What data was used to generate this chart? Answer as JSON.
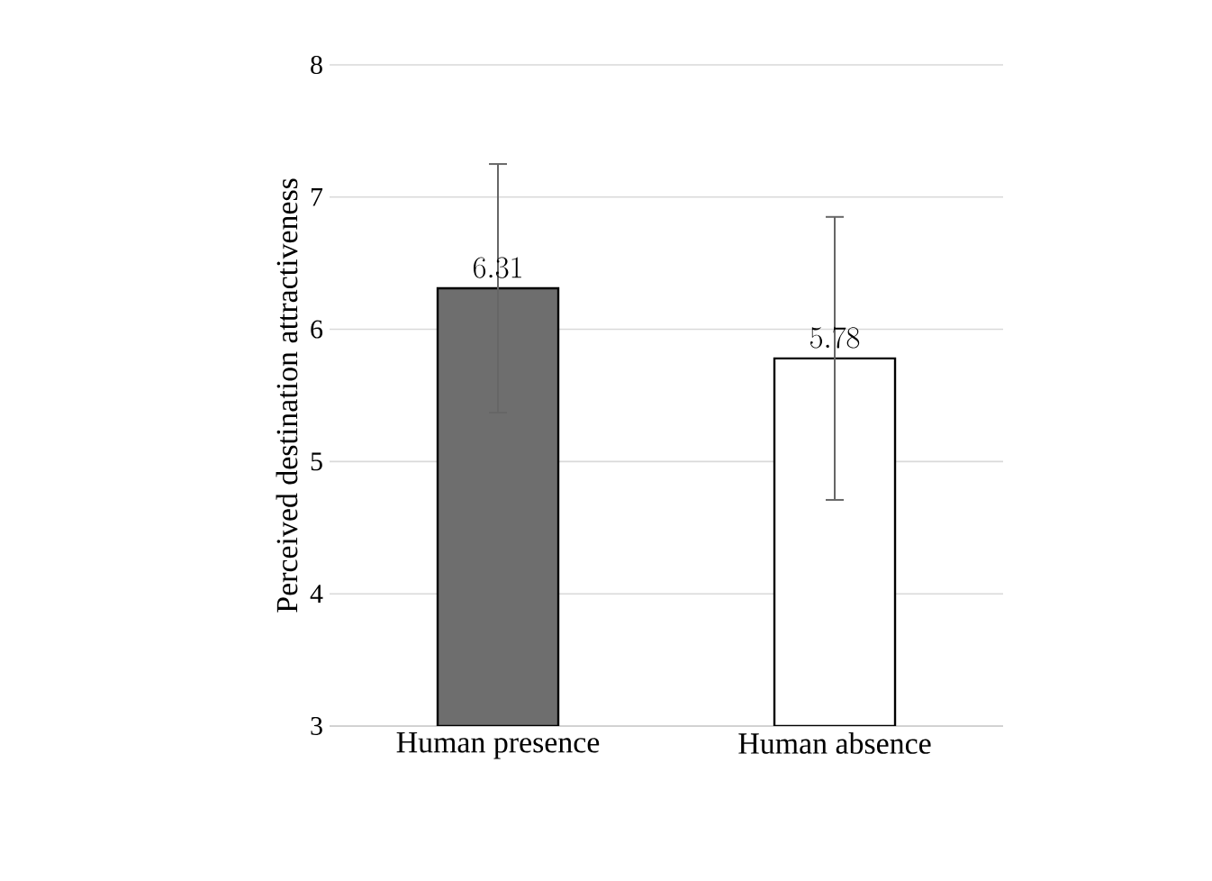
{
  "chart_data": {
    "type": "bar",
    "ylabel": "Perceived destination attractiveness",
    "categories": [
      "Human presence",
      "Human absence"
    ],
    "values": [
      6.31,
      5.78
    ],
    "errors": [
      0.94,
      1.07
    ],
    "colors": [
      "#6e6e6e",
      "#ffffff"
    ],
    "ylim": [
      3,
      8
    ],
    "yticks": [
      3,
      4,
      5,
      6,
      7,
      8
    ],
    "grid": "y",
    "data_labels": true
  }
}
